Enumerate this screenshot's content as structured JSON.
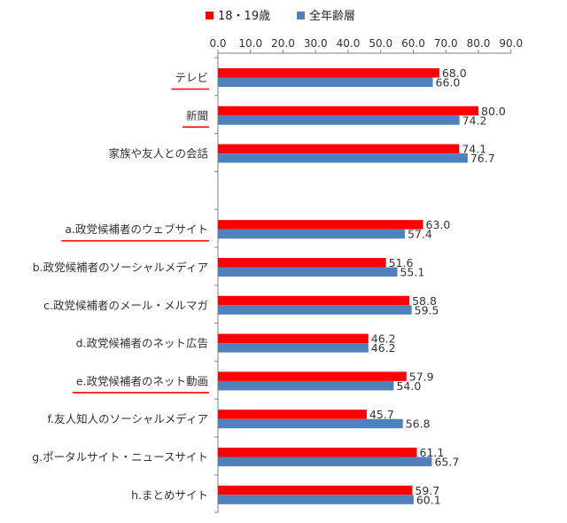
{
  "chart_data": {
    "type": "bar",
    "orientation": "horizontal",
    "categories": [
      "テレビ",
      "新聞",
      "家族や友人との会話",
      "",
      "a.政党候補者のウェブサイト",
      "b.政党候補者のソーシャルメディア",
      "c.政党候補者のメール・メルマガ",
      "d.政党候補者のネット広告",
      "e.政党候補者のネット動画",
      "f.友人知人のソーシャルメディア",
      "g.ポータルサイト・ニュースサイト",
      "h.まとめサイト"
    ],
    "underlined_categories": [
      "テレビ",
      "新聞",
      "a.政党候補者のウェブサイト",
      "e.政党候補者のネット動画"
    ],
    "series": [
      {
        "name": "18・19歳",
        "color": "#ff0000",
        "values": [
          68.0,
          80.0,
          74.1,
          null,
          63.0,
          51.6,
          58.8,
          46.2,
          57.9,
          45.7,
          61.1,
          59.7
        ]
      },
      {
        "name": "全年齢層",
        "color": "#4f81bd",
        "values": [
          66.0,
          74.2,
          76.7,
          null,
          57.4,
          55.1,
          59.5,
          46.2,
          54.0,
          56.8,
          65.7,
          60.1
        ]
      }
    ],
    "value_labels_1": [
      "68.0",
      "80.0",
      "74.1",
      "",
      "63.0",
      "51.6",
      "58.8",
      "46.2",
      "57.9",
      "45.7",
      "61.1",
      "59.7"
    ],
    "value_labels_2": [
      "66.0",
      "74.2",
      "76.7",
      "",
      "57.4",
      "55.1",
      "59.5",
      "46.2",
      "54.0",
      "56.8",
      "65.7",
      "60.1"
    ],
    "xlim": [
      0,
      90
    ],
    "xticks": [
      "0.0",
      "10.0",
      "20.0",
      "30.0",
      "40.0",
      "50.0",
      "60.0",
      "70.0",
      "80.0",
      "90.0"
    ],
    "grid": false,
    "axis_position": "top",
    "legend_position": "top"
  }
}
